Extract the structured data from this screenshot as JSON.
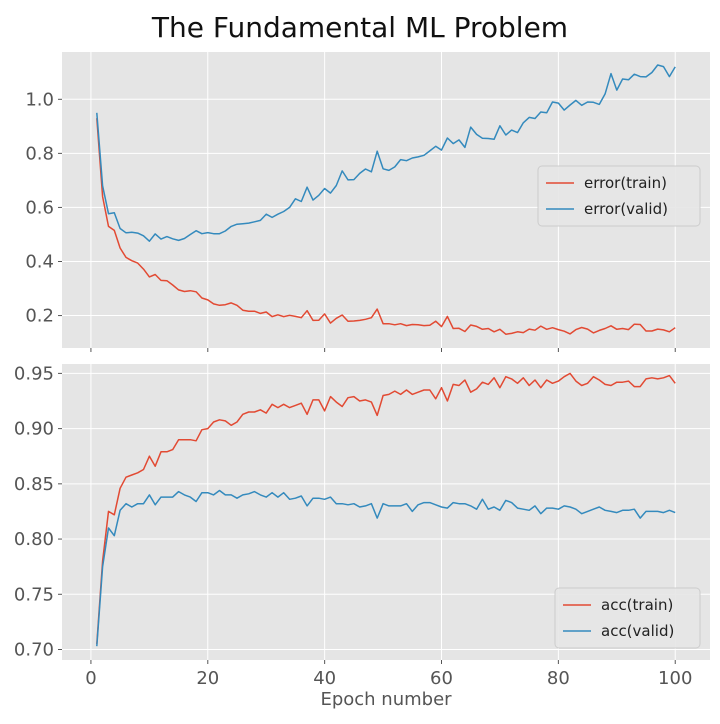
{
  "chart_data": {
    "title": "The Fundamental ML Problem",
    "xlabel": "Epoch number",
    "colors": {
      "train": "#e24a33",
      "valid": "#348abd",
      "panel_bg": "#e5e5e5",
      "grid": "#ffffff"
    },
    "x": [
      1,
      2,
      3,
      4,
      5,
      6,
      7,
      8,
      9,
      10,
      11,
      12,
      13,
      14,
      15,
      16,
      17,
      18,
      19,
      20,
      21,
      22,
      23,
      24,
      25,
      26,
      27,
      28,
      29,
      30,
      31,
      32,
      33,
      34,
      35,
      36,
      37,
      38,
      39,
      40,
      41,
      42,
      43,
      44,
      45,
      46,
      47,
      48,
      49,
      50,
      51,
      52,
      53,
      54,
      55,
      56,
      57,
      58,
      59,
      60,
      61,
      62,
      63,
      64,
      65,
      66,
      67,
      68,
      69,
      70,
      71,
      72,
      73,
      74,
      75,
      76,
      77,
      78,
      79,
      80,
      81,
      82,
      83,
      84,
      85,
      86,
      87,
      88,
      89,
      90,
      91,
      92,
      93,
      94,
      95,
      96,
      97,
      98,
      99,
      100
    ],
    "xticks": [
      0,
      20,
      40,
      60,
      80,
      100
    ],
    "xlim": [
      -4.95,
      105.95
    ],
    "charts": [
      {
        "type": "line",
        "yticks": [
          "0.2",
          "0.4",
          "0.6",
          "0.8",
          "1.0"
        ],
        "ylim": [
          0.08,
          1.175
        ],
        "legend": "center-right",
        "series": [
          {
            "name": "error(train)",
            "color_key": "train",
            "values": [
              0.93,
              0.64,
              0.53,
              0.515,
              0.45,
              0.415,
              0.403,
              0.394,
              0.372,
              0.343,
              0.352,
              0.33,
              0.329,
              0.313,
              0.295,
              0.289,
              0.292,
              0.288,
              0.265,
              0.258,
              0.243,
              0.238,
              0.24,
              0.247,
              0.238,
              0.22,
              0.216,
              0.216,
              0.208,
              0.213,
              0.196,
              0.203,
              0.196,
              0.201,
              0.197,
              0.192,
              0.218,
              0.182,
              0.183,
              0.206,
              0.172,
              0.19,
              0.202,
              0.179,
              0.18,
              0.182,
              0.186,
              0.192,
              0.224,
              0.17,
              0.17,
              0.166,
              0.17,
              0.163,
              0.167,
              0.166,
              0.163,
              0.164,
              0.179,
              0.159,
              0.197,
              0.152,
              0.153,
              0.141,
              0.165,
              0.16,
              0.149,
              0.152,
              0.14,
              0.149,
              0.131,
              0.134,
              0.14,
              0.137,
              0.15,
              0.146,
              0.161,
              0.149,
              0.155,
              0.148,
              0.142,
              0.132,
              0.148,
              0.156,
              0.15,
              0.136,
              0.145,
              0.152,
              0.162,
              0.149,
              0.152,
              0.148,
              0.168,
              0.167,
              0.143,
              0.143,
              0.15,
              0.147,
              0.14,
              0.155
            ]
          },
          {
            "name": "error(valid)",
            "color_key": "valid",
            "values": [
              0.95,
              0.68,
              0.577,
              0.58,
              0.522,
              0.506,
              0.508,
              0.505,
              0.495,
              0.475,
              0.502,
              0.483,
              0.492,
              0.484,
              0.478,
              0.485,
              0.5,
              0.514,
              0.503,
              0.507,
              0.503,
              0.503,
              0.513,
              0.53,
              0.538,
              0.54,
              0.542,
              0.547,
              0.552,
              0.575,
              0.563,
              0.575,
              0.585,
              0.6,
              0.632,
              0.622,
              0.675,
              0.627,
              0.645,
              0.67,
              0.653,
              0.681,
              0.735,
              0.702,
              0.703,
              0.726,
              0.742,
              0.732,
              0.808,
              0.743,
              0.737,
              0.75,
              0.777,
              0.773,
              0.783,
              0.787,
              0.793,
              0.809,
              0.826,
              0.812,
              0.857,
              0.836,
              0.85,
              0.822,
              0.897,
              0.87,
              0.856,
              0.855,
              0.852,
              0.902,
              0.868,
              0.886,
              0.877,
              0.913,
              0.933,
              0.929,
              0.953,
              0.95,
              0.99,
              0.986,
              0.96,
              0.979,
              0.996,
              0.978,
              0.99,
              0.989,
              0.981,
              1.02,
              1.095,
              1.034,
              1.075,
              1.072,
              1.093,
              1.084,
              1.083,
              1.099,
              1.127,
              1.121,
              1.084,
              1.12
            ]
          }
        ]
      },
      {
        "type": "line",
        "yticks": [
          "0.70",
          "0.75",
          "0.80",
          "0.85",
          "0.90",
          "0.95"
        ],
        "ylim": [
          0.6905,
          0.9585
        ],
        "legend": "bottom-right",
        "series": [
          {
            "name": "acc(train)",
            "color_key": "train",
            "values": [
              0.705,
              0.78,
              0.825,
              0.822,
              0.846,
              0.856,
              0.858,
              0.86,
              0.863,
              0.875,
              0.866,
              0.879,
              0.879,
              0.881,
              0.89,
              0.89,
              0.89,
              0.889,
              0.899,
              0.9,
              0.906,
              0.908,
              0.907,
              0.903,
              0.906,
              0.913,
              0.915,
              0.915,
              0.917,
              0.914,
              0.922,
              0.919,
              0.922,
              0.919,
              0.921,
              0.923,
              0.913,
              0.926,
              0.926,
              0.916,
              0.929,
              0.924,
              0.92,
              0.928,
              0.929,
              0.925,
              0.926,
              0.924,
              0.912,
              0.93,
              0.931,
              0.934,
              0.931,
              0.935,
              0.931,
              0.933,
              0.935,
              0.935,
              0.927,
              0.937,
              0.925,
              0.94,
              0.939,
              0.944,
              0.933,
              0.936,
              0.942,
              0.94,
              0.946,
              0.937,
              0.947,
              0.945,
              0.941,
              0.946,
              0.939,
              0.944,
              0.937,
              0.944,
              0.941,
              0.943,
              0.947,
              0.95,
              0.943,
              0.939,
              0.941,
              0.947,
              0.944,
              0.94,
              0.939,
              0.942,
              0.942,
              0.943,
              0.938,
              0.938,
              0.945,
              0.946,
              0.945,
              0.946,
              0.948,
              0.941
            ]
          },
          {
            "name": "acc(valid)",
            "color_key": "valid",
            "values": [
              0.703,
              0.775,
              0.81,
              0.803,
              0.826,
              0.832,
              0.829,
              0.832,
              0.832,
              0.84,
              0.831,
              0.838,
              0.838,
              0.838,
              0.843,
              0.84,
              0.838,
              0.834,
              0.842,
              0.842,
              0.84,
              0.844,
              0.84,
              0.84,
              0.837,
              0.84,
              0.841,
              0.843,
              0.84,
              0.838,
              0.842,
              0.838,
              0.842,
              0.836,
              0.837,
              0.839,
              0.83,
              0.837,
              0.837,
              0.836,
              0.838,
              0.832,
              0.832,
              0.831,
              0.832,
              0.829,
              0.83,
              0.832,
              0.819,
              0.832,
              0.83,
              0.83,
              0.83,
              0.832,
              0.825,
              0.831,
              0.833,
              0.833,
              0.831,
              0.829,
              0.828,
              0.833,
              0.832,
              0.832,
              0.83,
              0.827,
              0.836,
              0.827,
              0.829,
              0.826,
              0.835,
              0.833,
              0.828,
              0.827,
              0.826,
              0.83,
              0.823,
              0.828,
              0.828,
              0.827,
              0.83,
              0.829,
              0.827,
              0.823,
              0.825,
              0.827,
              0.829,
              0.826,
              0.825,
              0.824,
              0.826,
              0.826,
              0.827,
              0.819,
              0.825,
              0.825,
              0.825,
              0.824,
              0.826,
              0.824
            ]
          }
        ]
      }
    ]
  }
}
